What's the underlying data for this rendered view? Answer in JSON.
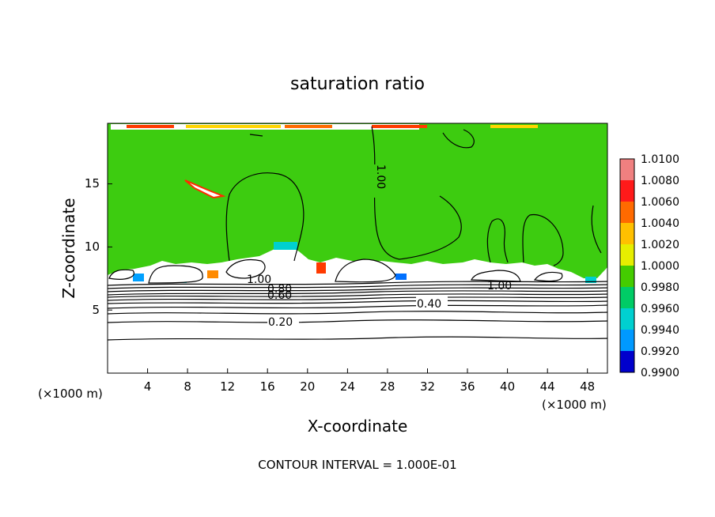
{
  "chart_data": {
    "type": "heatmap",
    "title": "saturation ratio",
    "xlabel": "X-coordinate",
    "ylabel": "Z-coordinate",
    "x_unit_left": "(×1000 m)",
    "x_unit_right": "(×1000 m)",
    "xlim": [
      0,
      50
    ],
    "ylim": [
      0,
      19.8
    ],
    "x_ticks": [
      4,
      8,
      12,
      16,
      20,
      24,
      28,
      32,
      36,
      40,
      44,
      48
    ],
    "y_ticks": [
      5,
      10,
      15
    ],
    "footer": "CONTOUR INTERVAL = 1.000E-01",
    "colorbar": {
      "levels": [
        "1.0100",
        "1.0080",
        "1.0060",
        "1.0040",
        "1.0020",
        "1.0000",
        "0.9980",
        "0.9960",
        "0.9940",
        "0.9920",
        "0.9900"
      ],
      "colors": [
        "#f08080",
        "#ff1a1a",
        "#ff6a00",
        "#ffc000",
        "#e6ee00",
        "#44cc00",
        "#00cc66",
        "#00d0d0",
        "#0099ff",
        "#0000cc",
        "#4b0082"
      ]
    },
    "contour_labels": [
      {
        "text": "1.00",
        "x": 27.1,
        "y": 15.3
      },
      {
        "text": "1.00",
        "x": 39.6,
        "y": 7.0
      },
      {
        "text": "1.00",
        "x": 15.3,
        "y": 7.4
      },
      {
        "text": "0.80",
        "x": 17.2,
        "y": 7.1
      },
      {
        "text": "0.60",
        "x": 17.2,
        "y": 6.3
      },
      {
        "text": "0.40",
        "x": 32.3,
        "y": 5.5
      },
      {
        "text": "0.20",
        "x": 17.7,
        "y": 4.2
      }
    ],
    "clear_air_contours": [
      0.2,
      0.3,
      0.4,
      0.5,
      0.6,
      0.7,
      0.8,
      0.9
    ]
  }
}
